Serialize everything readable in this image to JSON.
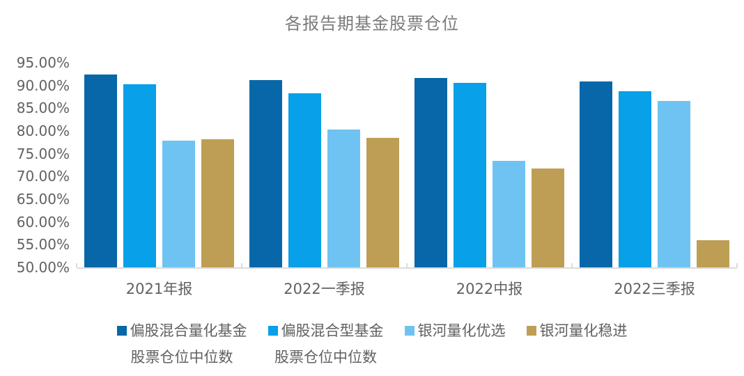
{
  "chart_data": {
    "type": "bar",
    "title": "各报告期基金股票仓位",
    "categories": [
      "2021年报",
      "2022一季报",
      "2022中报",
      "2022三季报"
    ],
    "series": [
      {
        "name": "偏股混合量化基金股票仓位中位数",
        "legend_lines": [
          "偏股混合量化基金",
          "股票仓位中位数"
        ],
        "color": "#0767a8",
        "values": [
          92.4,
          91.1,
          91.7,
          90.9
        ]
      },
      {
        "name": "偏股混合型基金股票仓位中位数",
        "legend_lines": [
          "偏股混合型基金",
          "股票仓位中位数"
        ],
        "color": "#08a0e8",
        "values": [
          90.3,
          88.2,
          90.5,
          88.8
        ]
      },
      {
        "name": "银河量化优选",
        "legend_lines": [
          "银河量化优选"
        ],
        "color": "#6fc3f2",
        "values": [
          77.8,
          80.3,
          73.4,
          86.6
        ]
      },
      {
        "name": "银河量化稳进",
        "legend_lines": [
          "银河量化稳进"
        ],
        "color": "#be9e55",
        "values": [
          78.2,
          78.4,
          71.7,
          55.9
        ]
      }
    ],
    "unit": "%",
    "value_format": "0.00%",
    "ylim": [
      50,
      95
    ],
    "ytick_values": [
      95,
      90,
      85,
      80,
      75,
      70,
      65,
      60,
      55,
      50
    ],
    "ytick_labels": [
      "95.00%",
      "90.00%",
      "85.00%",
      "80.00%",
      "75.00%",
      "70.00%",
      "65.00%",
      "60.00%",
      "55.00%",
      "50.00%"
    ],
    "grid": false,
    "legend_position": "bottom",
    "xlabel": "",
    "ylabel": ""
  },
  "style": {
    "title_color": "#7a7a7a",
    "label_color": "#616161",
    "axis_line_color": "#dcdcdc",
    "background": "#ffffff"
  }
}
